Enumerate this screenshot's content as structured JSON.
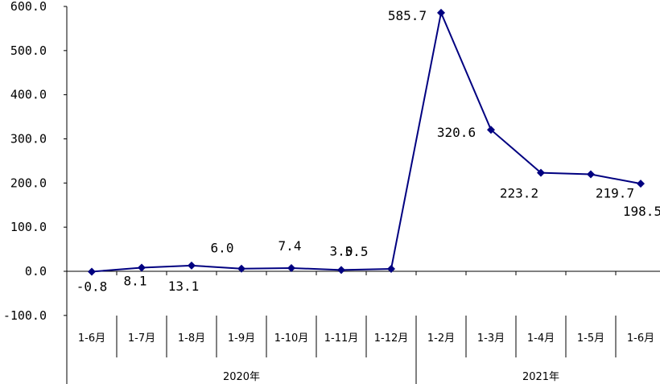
{
  "chart_data": {
    "type": "line",
    "categories": [
      "1-6月",
      "1-7月",
      "1-8月",
      "1-9月",
      "1-10月",
      "1-11月",
      "1-12月",
      "1-2月",
      "1-3月",
      "1-4月",
      "1-5月",
      "1-6月"
    ],
    "groups": [
      {
        "label": "2020年",
        "count": 7
      },
      {
        "label": "2021年",
        "count": 5
      }
    ],
    "series": [
      {
        "values": [
          -0.8,
          8.1,
          13.1,
          6.0,
          7.4,
          3.0,
          5.5,
          585.7,
          320.6,
          223.2,
          219.7,
          198.5
        ],
        "labels": [
          "-0.8",
          "8.1",
          "13.1",
          "6.0",
          "7.4",
          "3.0",
          "5.5",
          "585.7",
          "320.6",
          "223.2",
          "219.7",
          "198.5"
        ],
        "color": "#000080"
      }
    ],
    "yticks": [
      "600.0",
      "500.0",
      "400.0",
      "300.0",
      "200.0",
      "100.0",
      "0.0",
      "-100.0"
    ],
    "ylim": [
      -100,
      600
    ],
    "grid": false,
    "marker": "diamond"
  }
}
